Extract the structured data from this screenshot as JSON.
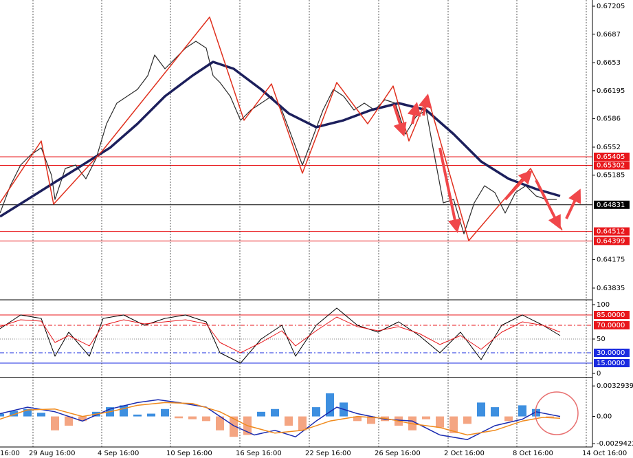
{
  "chart_data": [
    {
      "type": "line",
      "xlim": [
        0,
        172.4
      ],
      "ylim": [
        0.63703,
        0.67279
      ],
      "yticks": [
        0.67205,
        0.6687,
        0.6653,
        0.66195,
        0.6586,
        0.6552,
        0.65185,
        0.64175,
        0.63835
      ],
      "levels": [
        {
          "value": 0.65405,
          "color": "#e8171b"
        },
        {
          "value": 0.65302,
          "color": "#e8171b"
        },
        {
          "value": 0.64831,
          "color": "#000000"
        },
        {
          "value": 0.64512,
          "color": "#e8171b"
        },
        {
          "value": 0.64399,
          "color": "#e8171b"
        }
      ],
      "series": [
        {
          "color": "#2b2b2b",
          "width": 1.2,
          "x": [
            0,
            3,
            6,
            9,
            12,
            15,
            16,
            19,
            22,
            25,
            28,
            31,
            34,
            37,
            40,
            43,
            45,
            48,
            51,
            54,
            57,
            60,
            62,
            64,
            67,
            70,
            73,
            76,
            79,
            82,
            85,
            88,
            91,
            94,
            97,
            100,
            103,
            106,
            109,
            112,
            115,
            118,
            121,
            124,
            126,
            129,
            132,
            135,
            138,
            141,
            144,
            147,
            150,
            153,
            156,
            159,
            162
          ],
          "values": [
            0.64731,
            0.65059,
            0.65306,
            0.65429,
            0.65512,
            0.65183,
            0.64895,
            0.65265,
            0.65306,
            0.65142,
            0.65388,
            0.65799,
            0.66046,
            0.66128,
            0.6621,
            0.66375,
            0.66621,
            0.66457,
            0.6658,
            0.66704,
            0.66786,
            0.66704,
            0.66375,
            0.66293,
            0.66128,
            0.6584,
            0.65964,
            0.66046,
            0.66128,
            0.65964,
            0.65635,
            0.65306,
            0.65635,
            0.65964,
            0.6621,
            0.66128,
            0.65964,
            0.66046,
            0.65964,
            0.66087,
            0.66046,
            0.65676,
            0.65882,
            0.65964,
            0.65512,
            0.64854,
            0.64895,
            0.64484,
            0.64854,
            0.65059,
            0.64977,
            0.64731,
            0.64977,
            0.65059,
            0.64936,
            0.64895,
            0.64895
          ]
        },
        {
          "color": "#1c1f5c",
          "width": 3.5,
          "x": [
            0,
            8,
            16,
            24,
            32,
            40,
            48,
            56,
            62,
            68,
            76,
            84,
            92,
            100,
            108,
            116,
            124,
            132,
            140,
            148,
            156,
            163
          ],
          "values": [
            0.6469,
            0.64895,
            0.65101,
            0.65306,
            0.65512,
            0.65799,
            0.66128,
            0.66375,
            0.66539,
            0.66457,
            0.6621,
            0.65923,
            0.65759,
            0.65841,
            0.65964,
            0.66046,
            0.65964,
            0.65676,
            0.65348,
            0.65142,
            0.65019,
            0.64936
          ]
        },
        {
          "color": "#e0301e",
          "width": 1.5,
          "x": [
            0,
            12,
            15.6,
            30,
            61,
            71,
            79,
            88,
            98,
            107,
            114.4,
            119,
            124.4,
            136.4,
            154.4,
            163.6
          ],
          "values": [
            0.64854,
            0.65594,
            0.64838,
            0.65487,
            0.67074,
            0.65841,
            0.66276,
            0.65208,
            0.66293,
            0.65799,
            0.66251,
            0.65594,
            0.66128,
            0.64402,
            0.65265,
            0.64525
          ]
        }
      ]
    },
    {
      "type": "line",
      "xlim": [
        0,
        172.4
      ],
      "ylim": [
        -5,
        106
      ],
      "yticks": [
        100,
        50,
        0
      ],
      "levels": [
        {
          "value": 85,
          "label": "85.0000",
          "color": "#e8171b"
        },
        {
          "value": 70,
          "label": "70.0000",
          "color": "#e8171b"
        },
        {
          "value": 30,
          "label": "30.0000",
          "color": "#1a2be0"
        },
        {
          "value": 15,
          "label": "15.0000",
          "color": "#1a2be0"
        }
      ],
      "series": [
        {
          "color": "#000000",
          "width": 1,
          "x": [
            0,
            6,
            12,
            16,
            20,
            26,
            30,
            36,
            42,
            48,
            54,
            60,
            64,
            70,
            76,
            82,
            86,
            92,
            98,
            104,
            110,
            116,
            122,
            128,
            134,
            140,
            146,
            152,
            158,
            163
          ],
          "values": [
            65,
            85,
            80,
            25,
            60,
            25,
            80,
            85,
            70,
            80,
            85,
            75,
            30,
            15,
            50,
            70,
            25,
            70,
            95,
            70,
            60,
            75,
            55,
            30,
            60,
            20,
            70,
            85,
            70,
            55
          ]
        },
        {
          "color": "#e8171b",
          "width": 1,
          "x": [
            0,
            6,
            12,
            16,
            20,
            26,
            30,
            36,
            42,
            48,
            54,
            60,
            64,
            70,
            76,
            82,
            86,
            92,
            98,
            104,
            110,
            116,
            122,
            128,
            134,
            140,
            146,
            152,
            158,
            163
          ],
          "values": [
            68,
            78,
            76,
            45,
            55,
            40,
            70,
            78,
            72,
            75,
            78,
            72,
            45,
            30,
            45,
            62,
            40,
            62,
            82,
            68,
            62,
            68,
            58,
            42,
            55,
            35,
            60,
            75,
            70,
            60
          ]
        }
      ]
    },
    {
      "type": "bar",
      "xlim": [
        0,
        172.4
      ],
      "ylim": [
        -0.0033,
        0.0042
      ],
      "yticks": [
        0.0032939,
        {
          "value": 0,
          "label": "0.00"
        },
        -0.0029422
      ],
      "xticks": [
        {
          "value": -8.8,
          "label": "16:00"
        },
        {
          "value": 9.6,
          "label": "29 Aug 16:00"
        },
        {
          "value": 29.6,
          "label": "4 Sep 16:00"
        },
        {
          "value": 49.6,
          "label": "10 Sep 16:00"
        },
        {
          "value": 69.8,
          "label": "16 Sep 16:00"
        },
        {
          "value": 90,
          "label": "22 Sep 16:00"
        },
        {
          "value": 110.2,
          "label": "26 Sep 16:00"
        },
        {
          "value": 130.4,
          "label": "2 Oct 16:00"
        },
        {
          "value": 150.4,
          "label": "8 Oct 16:00"
        },
        {
          "value": 170.6,
          "label": "14 Oct 16:00"
        }
      ],
      "positive_color": "#3d8fe0",
      "negative_color": "#f4a582",
      "x": [
        0,
        4,
        8,
        12,
        16,
        20,
        24,
        28,
        32,
        36,
        40,
        44,
        48,
        52,
        56,
        60,
        64,
        68,
        72,
        76,
        80,
        84,
        88,
        92,
        96,
        100,
        104,
        108,
        112,
        116,
        120,
        124,
        128,
        132,
        136,
        140,
        144,
        148,
        152,
        156,
        160
      ],
      "values": [
        0.0003,
        0.0006,
        0.0008,
        0.0004,
        -0.0015,
        -0.001,
        -0.0005,
        0.0005,
        0.001,
        0.0012,
        0.0002,
        0.0003,
        0.0008,
        -0.0002,
        -0.0003,
        -0.0005,
        -0.0015,
        -0.0022,
        -0.002,
        0.0005,
        0.0008,
        -0.001,
        -0.0015,
        0.001,
        0.0025,
        0.0015,
        -0.0005,
        -0.0008,
        -0.0005,
        -0.001,
        -0.0015,
        -0.0003,
        -0.0012,
        -0.0018,
        -0.0008,
        0.0015,
        0.001,
        -0.0005,
        0.0012,
        0.0008,
        -0.0001
      ],
      "series": [
        {
          "color": "#1a2bb0",
          "width": 1.5,
          "x": [
            0,
            8,
            16,
            24,
            32,
            40,
            46,
            52,
            60,
            68,
            74,
            80,
            86,
            92,
            98,
            104,
            112,
            120,
            128,
            136,
            144,
            152,
            156,
            163
          ],
          "values": [
            0.0003,
            0.001,
            0.0005,
            -0.0005,
            0.0008,
            0.0015,
            0.0018,
            0.0015,
            0.001,
            -0.001,
            -0.002,
            -0.0015,
            -0.0022,
            -0.0005,
            0.001,
            0.0003,
            -0.0003,
            -0.0005,
            -0.002,
            -0.0025,
            -0.001,
            -0.0003,
            0.0005,
            0
          ]
        },
        {
          "color": "#f08a1c",
          "width": 1.5,
          "x": [
            0,
            8,
            16,
            24,
            32,
            40,
            48,
            56,
            64,
            72,
            80,
            88,
            96,
            104,
            112,
            120,
            128,
            136,
            144,
            152,
            158,
            163
          ],
          "values": [
            -0.0003,
            0.0007,
            0.0008,
            0,
            0.0005,
            0.0012,
            0.0015,
            0.0014,
            0.0005,
            -0.001,
            -0.0018,
            -0.0015,
            -0.0005,
            0,
            -0.0002,
            -0.0008,
            -0.0012,
            -0.002,
            -0.0015,
            -0.0005,
            -0.0001,
            -0.0002
          ]
        }
      ]
    }
  ]
}
